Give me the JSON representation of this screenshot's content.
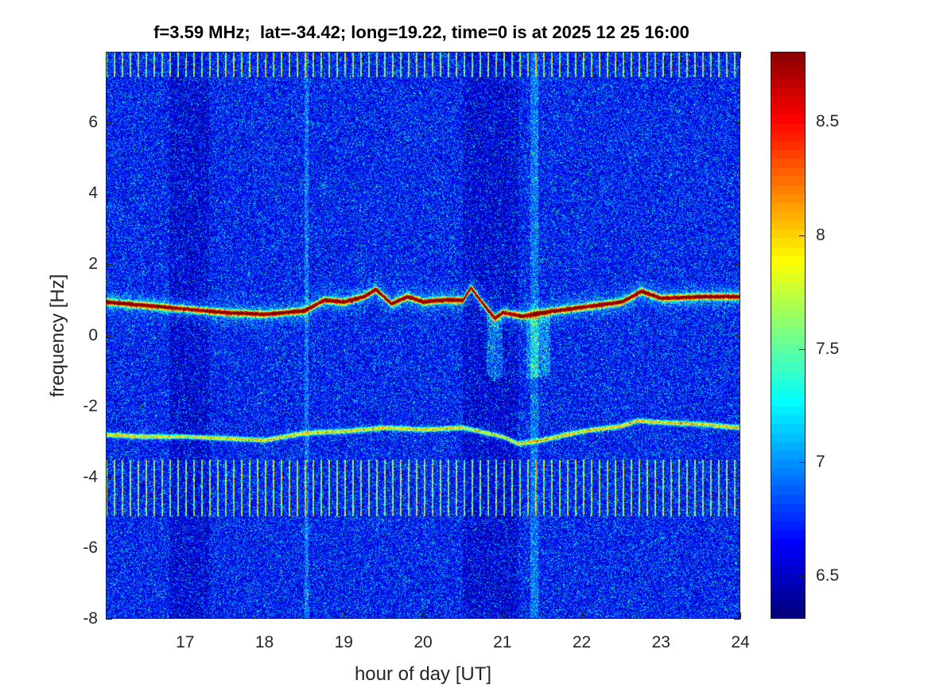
{
  "chart_data": {
    "type": "heatmap",
    "title": "f=3.59 MHz;  lat=-34.42; long=19.22, time=0 is at 2025 12 25 16:00",
    "xlabel": "hour of day [UT]",
    "ylabel": "frequency [Hz]",
    "xlim": [
      16,
      24
    ],
    "ylim": [
      -8,
      8
    ],
    "xticks": [
      17,
      18,
      19,
      20,
      21,
      22,
      23,
      24
    ],
    "yticks": [
      -8,
      -6,
      -4,
      -2,
      0,
      2,
      4,
      6
    ],
    "colormap": "jet",
    "colorbar": {
      "range": [
        6.31,
        8.81
      ],
      "ticks": [
        6.5,
        7,
        7.5,
        8,
        8.5
      ]
    },
    "features": {
      "main_trace": {
        "hours": [
          16.0,
          16.5,
          17.0,
          17.5,
          18.0,
          18.5,
          18.75,
          19.0,
          19.25,
          19.4,
          19.6,
          19.8,
          20.0,
          20.25,
          20.5,
          20.6,
          20.75,
          20.9,
          21.0,
          21.25,
          21.5,
          22.0,
          22.5,
          22.75,
          23.0,
          23.5,
          24.0
        ],
        "freq_hz": [
          0.95,
          0.85,
          0.75,
          0.65,
          0.6,
          0.7,
          1.0,
          0.95,
          1.1,
          1.3,
          0.9,
          1.1,
          0.95,
          1.0,
          1.0,
          1.35,
          0.9,
          0.5,
          0.65,
          0.55,
          0.65,
          0.8,
          0.95,
          1.25,
          1.05,
          1.1,
          1.1
        ],
        "level": 8.8
      },
      "lower_trace": {
        "hours": [
          16.0,
          16.5,
          17.0,
          17.5,
          18.0,
          18.5,
          19.0,
          19.5,
          20.0,
          20.5,
          21.0,
          21.2,
          21.5,
          22.0,
          22.5,
          22.7,
          23.0,
          23.5,
          24.0
        ],
        "freq_hz": [
          -2.8,
          -2.85,
          -2.85,
          -2.9,
          -2.95,
          -2.75,
          -2.7,
          -2.6,
          -2.65,
          -2.6,
          -2.85,
          -3.05,
          -2.95,
          -2.7,
          -2.55,
          -2.4,
          -2.45,
          -2.5,
          -2.6
        ],
        "level": 7.9
      },
      "interference_bands_hz": [
        [
          -5.1,
          -3.5
        ],
        [
          7.3,
          8.0
        ]
      ],
      "background_level": 6.6
    }
  }
}
